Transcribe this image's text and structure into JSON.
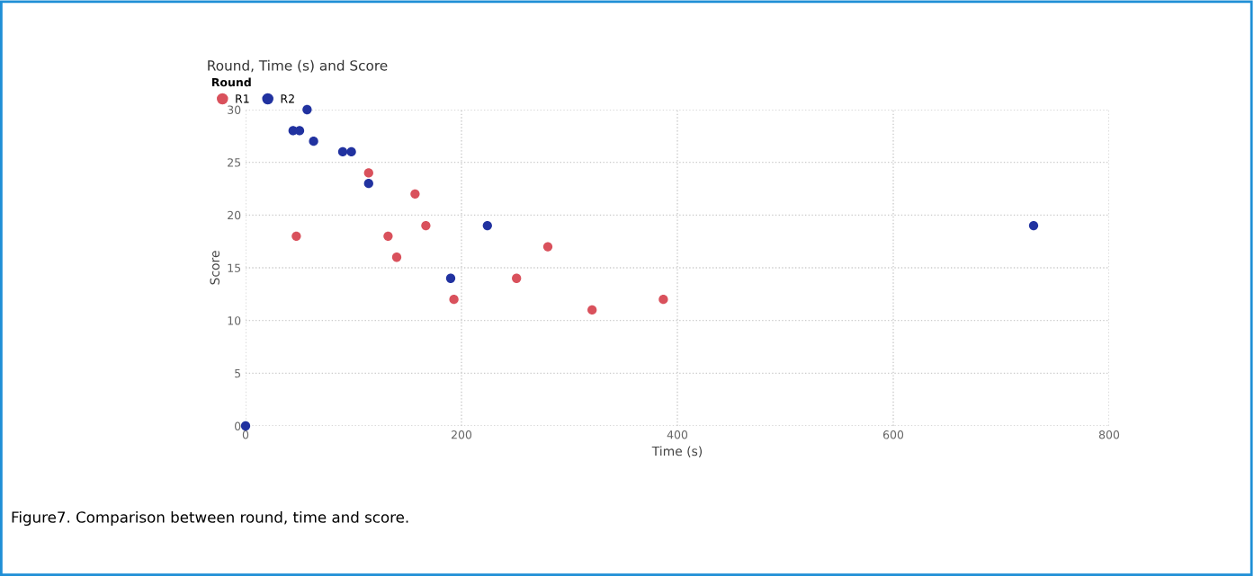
{
  "chart_data": {
    "type": "scatter",
    "title": "Round, Time (s) and Score",
    "legend_title": "Round",
    "xlabel": "Time (s)",
    "ylabel": "Score",
    "xlim": [
      0,
      800
    ],
    "xticks": [
      0,
      200,
      400,
      600,
      800
    ],
    "ylim": [
      0,
      30
    ],
    "yticks": [
      0,
      5,
      10,
      15,
      20,
      25,
      30
    ],
    "grid": true,
    "legend": "top left",
    "marker": "circle",
    "series": [
      {
        "name": "R1",
        "color": "#d9515c",
        "x": [
          47,
          114,
          157,
          167,
          132,
          140,
          193,
          251,
          280,
          321,
          387
        ],
        "values": [
          18,
          24,
          22,
          19,
          18,
          16,
          12,
          14,
          17,
          11,
          12
        ]
      },
      {
        "name": "R2",
        "color": "#2132a0",
        "x": [
          0,
          44,
          50,
          57,
          63,
          90,
          98,
          114,
          190,
          224,
          730
        ],
        "values": [
          0,
          28,
          28,
          30,
          27,
          26,
          26,
          23,
          14,
          19,
          19
        ]
      }
    ],
    "annotations": [
      "Figure7. Comparison between round, time and score."
    ]
  }
}
